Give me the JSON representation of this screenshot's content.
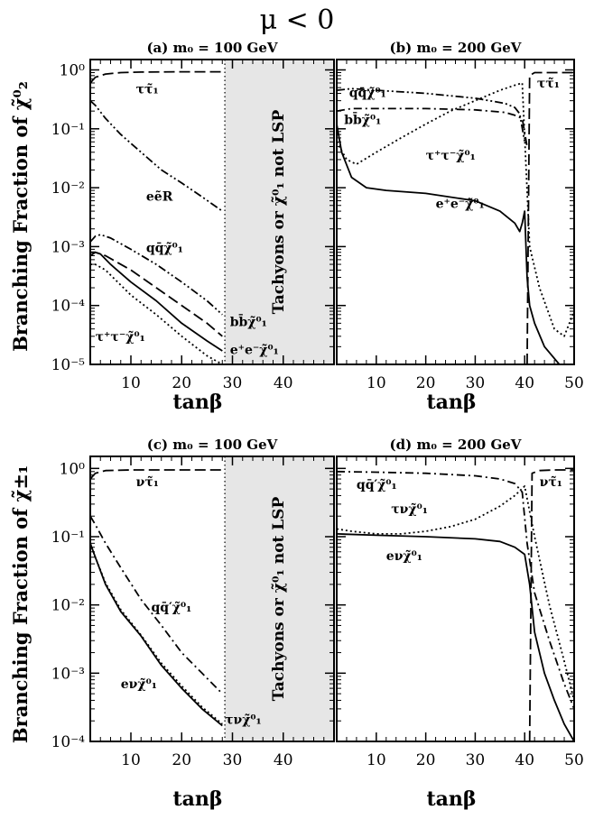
{
  "figure_title": "μ < 0",
  "ylabel_top": "Branching Fraction of χ̃⁰₂",
  "ylabel_bottom": "Branching Fraction of χ̃±₁",
  "xlabel": "tanβ",
  "colors": {
    "line": "#000000",
    "excluded_region": "#e6e6e6",
    "background": "#ffffff"
  },
  "chart_data": [
    {
      "id": "a",
      "type": "line",
      "title": "(a) m₀ = 100 GeV",
      "xlabel": "tanβ",
      "ylabel": "Branching Fraction of χ̃⁰₂",
      "xlim": [
        2,
        50
      ],
      "ylim": [
        1e-05,
        1.5
      ],
      "yscale": "log",
      "x_ticks": [
        10,
        20,
        30,
        40
      ],
      "y_ticks": [
        "10⁰",
        "10⁻¹",
        "10⁻²",
        "10⁻³",
        "10⁻⁴",
        "10⁻⁵"
      ],
      "excluded_region": {
        "x": [
          28.5,
          50
        ],
        "label": "Tachyons or χ̃⁰₁ not LSP"
      },
      "series": [
        {
          "label": "ττ̃₁",
          "dash": "long",
          "x": [
            2,
            3,
            5,
            8,
            12,
            20,
            28
          ],
          "y": [
            0.6,
            0.75,
            0.85,
            0.9,
            0.92,
            0.93,
            0.93
          ]
        },
        {
          "label": "eẽR",
          "dash": "dash-dot-dot",
          "x": [
            2,
            3,
            5,
            8,
            12,
            16,
            20,
            24,
            28
          ],
          "y": [
            0.3,
            0.25,
            0.15,
            0.08,
            0.04,
            0.02,
            0.012,
            0.007,
            0.004
          ]
        },
        {
          "label": "qq̄χ̃⁰₁",
          "dash": "dash-dot-dot",
          "x": [
            2,
            3,
            4,
            6,
            10,
            15,
            20,
            25,
            28
          ],
          "y": [
            0.0012,
            0.0015,
            0.0016,
            0.0014,
            0.0009,
            0.0005,
            0.00025,
            0.00012,
            7e-05
          ]
        },
        {
          "label": "bb̄χ̃⁰₁",
          "dash": "long",
          "x": [
            2,
            3,
            5,
            10,
            15,
            20,
            25,
            28
          ],
          "y": [
            0.0007,
            0.0008,
            0.0007,
            0.0004,
            0.0002,
            0.0001,
            5e-05,
            3e-05
          ]
        },
        {
          "label": "e⁺e⁻χ̃⁰₁",
          "dash": "solid",
          "x": [
            2,
            3,
            4,
            6,
            10,
            15,
            20,
            25,
            28
          ],
          "y": [
            0.0008,
            0.0008,
            0.00075,
            0.0005,
            0.00025,
            0.00012,
            5e-05,
            2.5e-05,
            1.7e-05
          ]
        },
        {
          "label": "τ⁺τ⁻χ̃⁰₁",
          "dash": "dotted",
          "x": [
            2,
            3,
            5,
            10,
            15,
            20,
            25,
            28
          ],
          "y": [
            0.0005,
            0.0005,
            0.0004,
            0.00015,
            7e-05,
            3e-05,
            1.4e-05,
            1e-05
          ]
        }
      ],
      "annotations": [
        {
          "text": "ττ̃₁",
          "x": 11,
          "y": 0.4
        },
        {
          "text": "eẽR",
          "x": 13,
          "y": 0.006
        },
        {
          "text": "qq̄χ̃⁰₁",
          "x": 13,
          "y": 0.0008
        },
        {
          "text": "bb̄χ̃⁰₁",
          "x": 29.5,
          "y": 4.5e-05
        },
        {
          "text": "e⁺e⁻χ̃⁰₁",
          "x": 29.5,
          "y": 1.5e-05
        },
        {
          "text": "τ⁺τ⁻χ̃⁰₁",
          "x": 3,
          "y": 2.5e-05
        }
      ]
    },
    {
      "id": "b",
      "type": "line",
      "title": "(b) m₀ = 200 GeV",
      "xlabel": "tanβ",
      "ylabel": "",
      "xlim": [
        2,
        50
      ],
      "ylim": [
        1e-05,
        1.5
      ],
      "yscale": "log",
      "x_ticks": [
        10,
        20,
        30,
        40,
        50
      ],
      "series": [
        {
          "label": "qq̄χ̃⁰₁",
          "dash": "dash-dot-dot",
          "x": [
            2,
            5,
            10,
            20,
            30,
            36,
            38,
            39,
            40
          ],
          "y": [
            0.45,
            0.48,
            0.45,
            0.4,
            0.33,
            0.27,
            0.23,
            0.18,
            0.06
          ]
        },
        {
          "label": "bb̄χ̃⁰₁",
          "dash": "dash-dot",
          "x": [
            2,
            5,
            10,
            20,
            30,
            36,
            38,
            39.5,
            40.5
          ],
          "y": [
            0.2,
            0.22,
            0.22,
            0.22,
            0.21,
            0.19,
            0.17,
            0.15,
            0.05
          ]
        },
        {
          "label": "τ⁺τ⁻χ̃⁰₁",
          "dash": "dotted",
          "x": [
            2,
            4,
            6,
            10,
            15,
            20,
            25,
            30,
            35,
            38,
            39.5,
            41,
            43,
            46,
            48,
            50
          ],
          "y": [
            0.06,
            0.03,
            0.025,
            0.04,
            0.07,
            0.12,
            0.2,
            0.3,
            0.45,
            0.55,
            0.6,
            0.001,
            0.0002,
            4e-05,
            3e-05,
            8e-05
          ]
        },
        {
          "label": "e⁺e⁻χ̃⁰₁",
          "dash": "solid",
          "x": [
            2,
            3,
            5,
            8,
            12,
            20,
            30,
            35,
            38,
            39,
            39.5,
            40,
            40.5,
            41,
            42,
            44,
            47,
            49.5
          ],
          "y": [
            0.12,
            0.04,
            0.015,
            0.01,
            0.009,
            0.008,
            0.006,
            0.004,
            0.0025,
            0.0018,
            0.0025,
            0.004,
            0.0003,
            0.0001,
            5e-05,
            2e-05,
            1e-05,
            8e-06
          ]
        },
        {
          "label": "ττ̃₁",
          "dash": "long",
          "x": [
            40.5,
            41,
            42,
            45,
            50
          ],
          "y": [
            1e-05,
            0.8,
            0.9,
            0.9,
            0.9
          ]
        }
      ],
      "annotations": [
        {
          "text": "qq̄χ̃⁰₁",
          "x": 4.5,
          "y": 0.35
        },
        {
          "text": "bb̄χ̃⁰₁",
          "x": 3.5,
          "y": 0.12
        },
        {
          "text": "τ⁺τ⁻χ̃⁰₁",
          "x": 20,
          "y": 0.03
        },
        {
          "text": "e⁺e⁻χ̃⁰₁",
          "x": 22,
          "y": 0.0045
        },
        {
          "text": "ττ̃₁",
          "x": 42.5,
          "y": 0.5
        }
      ]
    },
    {
      "id": "c",
      "type": "line",
      "title": "(c) m₀ = 100 GeV",
      "xlabel": "tanβ",
      "ylabel": "Branching Fraction of χ̃±₁",
      "xlim": [
        2,
        50
      ],
      "ylim": [
        0.0001,
        1.5
      ],
      "yscale": "log",
      "x_ticks": [
        10,
        20,
        30,
        40
      ],
      "y_ticks": [
        "10⁰",
        "10⁻¹",
        "10⁻²",
        "10⁻³",
        "10⁻⁴"
      ],
      "excluded_region": {
        "x": [
          28.5,
          50
        ],
        "label": "Tachyons or χ̃⁰₁ not LSP"
      },
      "series": [
        {
          "label": "ντ̃₁",
          "dash": "long",
          "x": [
            2,
            3,
            5,
            10,
            20,
            28
          ],
          "y": [
            0.7,
            0.85,
            0.93,
            0.95,
            0.95,
            0.95
          ]
        },
        {
          "label": "qq̄′χ̃⁰₁",
          "dash": "dash-dot",
          "x": [
            2,
            3,
            5,
            8,
            12,
            16,
            20,
            24,
            28
          ],
          "y": [
            0.2,
            0.15,
            0.08,
            0.035,
            0.012,
            0.005,
            0.002,
            0.001,
            0.0005
          ]
        },
        {
          "label": "eνχ̃⁰₁",
          "dash": "solid",
          "x": [
            2,
            3,
            5,
            8,
            12,
            16,
            20,
            24,
            28
          ],
          "y": [
            0.08,
            0.05,
            0.02,
            0.008,
            0.0035,
            0.0013,
            0.0006,
            0.0003,
            0.00017
          ]
        },
        {
          "label": "τνχ̃⁰₁",
          "dash": "dotted",
          "x": [
            2,
            3,
            5,
            8,
            12,
            16,
            20,
            24,
            28
          ],
          "y": [
            0.08,
            0.05,
            0.021,
            0.0085,
            0.0036,
            0.0014,
            0.00065,
            0.00032,
            0.00018
          ]
        }
      ],
      "annotations": [
        {
          "text": "ντ̃₁",
          "x": 11,
          "y": 0.55
        },
        {
          "text": "qq̄′χ̃⁰₁",
          "x": 14,
          "y": 0.008
        },
        {
          "text": "eνχ̃⁰₁",
          "x": 8,
          "y": 0.0006
        },
        {
          "text": "τνχ̃⁰₁",
          "x": 28.5,
          "y": 0.00018
        }
      ]
    },
    {
      "id": "d",
      "type": "line",
      "title": "(d) m₀ = 200 GeV",
      "xlabel": "tanβ",
      "ylabel": "",
      "xlim": [
        2,
        50
      ],
      "ylim": [
        0.0001,
        1.5
      ],
      "yscale": "log",
      "x_ticks": [
        10,
        20,
        30,
        40,
        50
      ],
      "series": [
        {
          "label": "qq̄′χ̃⁰₁",
          "dash": "dash-dot",
          "x": [
            2,
            10,
            20,
            30,
            35,
            38,
            39.5,
            40.5,
            42,
            45,
            48,
            50
          ],
          "y": [
            0.9,
            0.88,
            0.85,
            0.78,
            0.7,
            0.6,
            0.45,
            0.08,
            0.015,
            0.003,
            0.0007,
            0.0003
          ]
        },
        {
          "label": "τνχ̃⁰₁",
          "dash": "dotted",
          "x": [
            2,
            5,
            10,
            15,
            20,
            25,
            30,
            35,
            38,
            40,
            42,
            45,
            48,
            50
          ],
          "y": [
            0.13,
            0.12,
            0.11,
            0.11,
            0.12,
            0.14,
            0.18,
            0.28,
            0.4,
            0.55,
            0.1,
            0.01,
            0.0015,
            0.0004
          ]
        },
        {
          "label": "eνχ̃⁰₁",
          "dash": "solid",
          "x": [
            2,
            10,
            20,
            30,
            35,
            38,
            40,
            41,
            42,
            44,
            46,
            48,
            50
          ],
          "y": [
            0.11,
            0.105,
            0.1,
            0.093,
            0.085,
            0.07,
            0.055,
            0.02,
            0.004,
            0.001,
            0.0004,
            0.00018,
            0.0001
          ]
        },
        {
          "label": "ντ̃₁",
          "dash": "long",
          "x": [
            41,
            41.5,
            43,
            46,
            50
          ],
          "y": [
            0.0001,
            0.85,
            0.93,
            0.95,
            0.95
          ]
        }
      ],
      "annotations": [
        {
          "text": "qq̄′χ̃⁰₁",
          "x": 6,
          "y": 0.5
        },
        {
          "text": "τνχ̃⁰₁",
          "x": 13,
          "y": 0.22
        },
        {
          "text": "eνχ̃⁰₁",
          "x": 12,
          "y": 0.045
        },
        {
          "text": "ντ̃₁",
          "x": 43,
          "y": 0.55
        }
      ]
    }
  ]
}
